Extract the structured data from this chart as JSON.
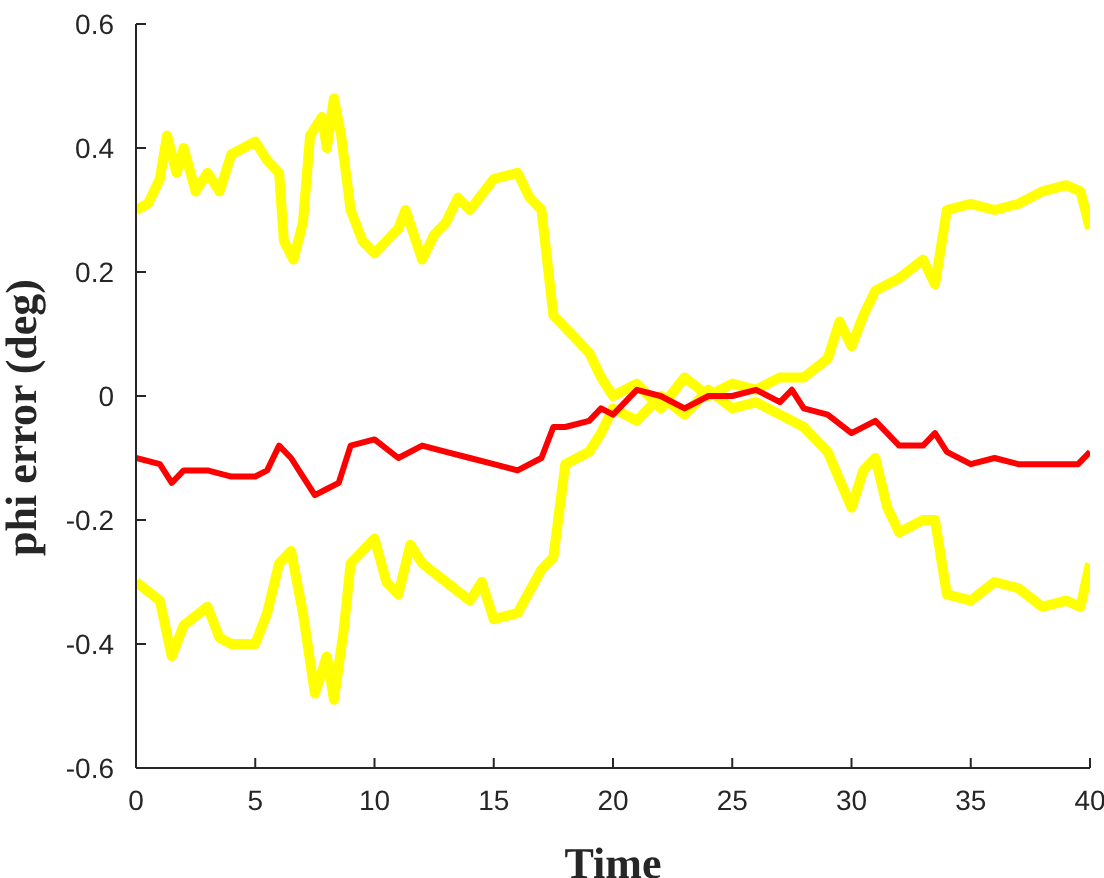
{
  "chart_data": {
    "type": "line",
    "xlabel": "Time",
    "ylabel": "phi error (deg)",
    "xlim": [
      0,
      40
    ],
    "xticks": [
      0,
      5,
      10,
      15,
      20,
      25,
      30,
      35,
      40
    ],
    "ylim": [
      -0.6,
      0.6
    ],
    "yticks": [
      -0.6,
      -0.4,
      -0.2,
      0,
      0.2,
      0.4,
      0.6
    ],
    "grid": false,
    "legend": false,
    "marker": "none",
    "line_style": "solid",
    "series": [
      {
        "color": "#ffff00",
        "x": [
          0,
          0.5,
          1,
          1.3,
          1.7,
          2,
          2.5,
          3,
          3.5,
          4,
          4.5,
          5,
          5.5,
          6,
          6.2,
          6.6,
          7,
          7.3,
          7.8,
          8,
          8.3,
          8.6,
          9,
          9.5,
          10,
          11,
          11.3,
          12,
          12.5,
          13,
          13.5,
          14,
          15,
          16,
          16.5,
          17,
          17.5,
          18,
          19,
          19.5,
          20,
          21,
          22,
          23,
          24,
          25,
          26,
          27,
          28,
          29,
          29.5,
          30,
          30.5,
          31,
          32,
          33,
          33.5,
          34,
          35,
          36,
          37,
          38,
          39,
          39.6,
          40
        ],
        "values": [
          0.3,
          0.31,
          0.35,
          0.42,
          0.36,
          0.4,
          0.33,
          0.36,
          0.33,
          0.39,
          0.4,
          0.41,
          0.38,
          0.36,
          0.25,
          0.22,
          0.28,
          0.42,
          0.45,
          0.4,
          0.48,
          0.42,
          0.3,
          0.25,
          0.23,
          0.27,
          0.3,
          0.22,
          0.26,
          0.28,
          0.32,
          0.3,
          0.35,
          0.36,
          0.32,
          0.3,
          0.13,
          0.11,
          0.07,
          0.03,
          0.0,
          0.02,
          -0.02,
          0.03,
          0.0,
          0.02,
          0.01,
          0.03,
          0.03,
          0.06,
          0.12,
          0.08,
          0.13,
          0.17,
          0.19,
          0.22,
          0.18,
          0.3,
          0.31,
          0.3,
          0.31,
          0.33,
          0.34,
          0.33,
          0.27
        ]
      },
      {
        "color": "#ffff00",
        "x": [
          0,
          1,
          1.5,
          2,
          3,
          3.5,
          4,
          5,
          5.5,
          6,
          6.5,
          7,
          7.5,
          8,
          8.3,
          8.7,
          9,
          10,
          10.5,
          11,
          11.5,
          12,
          13,
          14,
          14.5,
          15,
          16,
          17,
          17.5,
          18,
          19,
          19.5,
          20,
          21,
          22,
          23,
          24,
          25,
          26,
          27,
          28,
          29,
          30,
          30.5,
          31,
          31.5,
          32,
          33,
          33.5,
          34,
          35,
          36,
          37,
          38,
          39,
          39.6,
          40
        ],
        "values": [
          -0.3,
          -0.33,
          -0.42,
          -0.37,
          -0.34,
          -0.39,
          -0.4,
          -0.4,
          -0.35,
          -0.27,
          -0.25,
          -0.35,
          -0.48,
          -0.42,
          -0.49,
          -0.38,
          -0.27,
          -0.23,
          -0.3,
          -0.32,
          -0.24,
          -0.27,
          -0.3,
          -0.33,
          -0.3,
          -0.36,
          -0.35,
          -0.28,
          -0.26,
          -0.11,
          -0.09,
          -0.06,
          -0.02,
          -0.04,
          0.0,
          -0.03,
          0.01,
          -0.02,
          -0.01,
          -0.03,
          -0.05,
          -0.09,
          -0.18,
          -0.12,
          -0.1,
          -0.18,
          -0.22,
          -0.2,
          -0.2,
          -0.32,
          -0.33,
          -0.3,
          -0.31,
          -0.34,
          -0.33,
          -0.34,
          -0.27
        ]
      },
      {
        "color": "#ff0000",
        "x": [
          0,
          1,
          1.5,
          2,
          3,
          4,
          5,
          5.5,
          6,
          6.5,
          7,
          7.5,
          8,
          8.5,
          9,
          10,
          11,
          12,
          13,
          14,
          15,
          16,
          17,
          17.5,
          18,
          19,
          19.5,
          20,
          21,
          22,
          23,
          24,
          25,
          26,
          27,
          27.5,
          28,
          29,
          30,
          31,
          32,
          33,
          33.5,
          34,
          35,
          36,
          37,
          38,
          39,
          39.5,
          40
        ],
        "values": [
          -0.1,
          -0.11,
          -0.14,
          -0.12,
          -0.12,
          -0.13,
          -0.13,
          -0.12,
          -0.08,
          -0.1,
          -0.13,
          -0.16,
          -0.15,
          -0.14,
          -0.08,
          -0.07,
          -0.1,
          -0.08,
          -0.09,
          -0.1,
          -0.11,
          -0.12,
          -0.1,
          -0.05,
          -0.05,
          -0.04,
          -0.02,
          -0.03,
          0.01,
          0.0,
          -0.02,
          0.0,
          0.0,
          0.01,
          -0.01,
          0.01,
          -0.02,
          -0.03,
          -0.06,
          -0.04,
          -0.08,
          -0.08,
          -0.06,
          -0.09,
          -0.11,
          -0.1,
          -0.11,
          -0.11,
          -0.11,
          -0.11,
          -0.09
        ]
      }
    ]
  }
}
